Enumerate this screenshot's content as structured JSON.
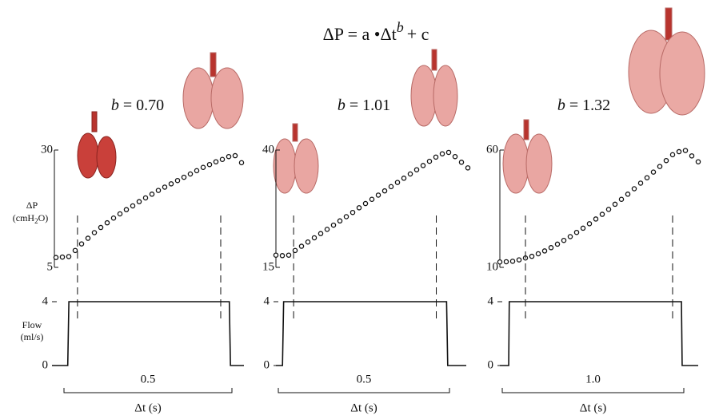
{
  "title": {
    "main": "ΔP = a •Δt",
    "superscript": "b",
    "tail": "+ c"
  },
  "chart_data": [
    {
      "type": "panel",
      "exponent_name": "b",
      "exponent_label": "= 0.70",
      "duration": {
        "value": 0.5,
        "label": "0.5"
      },
      "x_label": "Δt (s)",
      "pressure": {
        "type": "scatter",
        "y_label": {
          "symbol": "ΔP",
          "unit_start": "(cmH",
          "unit_sub": "2",
          "unit_end": "O)"
        },
        "values": [
          7.1,
          7.2,
          7.3,
          8.6,
          10.0,
          11.2,
          12.4,
          13.5,
          14.5,
          15.5,
          16.4,
          17.3,
          18.1,
          19.0,
          19.8,
          20.6,
          21.4,
          22.1,
          22.8,
          23.5,
          24.2,
          24.9,
          25.6,
          26.3,
          26.9,
          27.5,
          28.0,
          28.6,
          28.8,
          27.3
        ],
        "ylim": [
          5,
          30
        ],
        "yticks": [
          5,
          30
        ]
      },
      "flow": {
        "type": "line",
        "y_label": [
          "Flow",
          "(ml/s)"
        ],
        "x": [
          -0.089,
          -0.034,
          -0.03,
          0.53,
          0.534,
          0.581
        ],
        "values": [
          0,
          0,
          4,
          4,
          0,
          0
        ],
        "xlim": [
          -0.089,
          0.581
        ],
        "ylim": [
          0,
          4
        ],
        "yticks": [
          0,
          4
        ]
      }
    },
    {
      "type": "panel",
      "exponent_name": "b",
      "exponent_label": "= 1.01",
      "duration": {
        "value": 0.5,
        "label": "0.5"
      },
      "x_label": "Δt (s)",
      "pressure": {
        "type": "scatter",
        "values": [
          17.6,
          17.5,
          17.6,
          18.6,
          19.5,
          20.4,
          21.3,
          22.2,
          23.1,
          24.0,
          24.9,
          25.8,
          26.7,
          27.7,
          28.6,
          29.5,
          30.4,
          31.3,
          32.2,
          33.1,
          34.0,
          34.9,
          35.8,
          36.7,
          37.6,
          38.5,
          39.2,
          39.5,
          38.6,
          37.4,
          36.2
        ],
        "ylim": [
          15,
          40
        ],
        "yticks": [
          15,
          40
        ]
      },
      "flow": {
        "type": "line",
        "x": [
          -0.062,
          -0.039,
          -0.035,
          0.536,
          0.54,
          0.605
        ],
        "values": [
          0,
          0,
          4,
          4,
          0,
          0
        ],
        "xlim": [
          -0.062,
          0.605
        ],
        "ylim": [
          0,
          4
        ],
        "yticks": [
          0,
          4
        ]
      }
    },
    {
      "type": "panel",
      "exponent_name": "b",
      "exponent_label": "= 1.32",
      "duration": {
        "value": 1,
        "label": "1.0"
      },
      "x_label": "Δt (s)",
      "pressure": {
        "type": "scatter",
        "values": [
          12.3,
          12.4,
          12.6,
          13.2,
          14.0,
          14.7,
          15.8,
          17.0,
          18.4,
          19.9,
          21.5,
          23.1,
          24.9,
          26.7,
          28.6,
          30.6,
          32.6,
          34.7,
          36.9,
          39.0,
          41.2,
          43.5,
          45.9,
          48.2,
          50.6,
          53.0,
          55.5,
          58.0,
          59.3,
          59.8,
          57.5,
          55.0
        ],
        "ylim": [
          10,
          60
        ],
        "yticks": [
          10,
          60
        ]
      },
      "flow": {
        "type": "line",
        "x": [
          -0.174,
          -0.114,
          -0.11,
          1.06,
          1.065,
          1.174
        ],
        "values": [
          0,
          0,
          4,
          4,
          0,
          0
        ],
        "xlim": [
          -0.174,
          1.174
        ],
        "ylim": [
          0,
          4
        ],
        "yticks": [
          0,
          4
        ]
      }
    }
  ]
}
